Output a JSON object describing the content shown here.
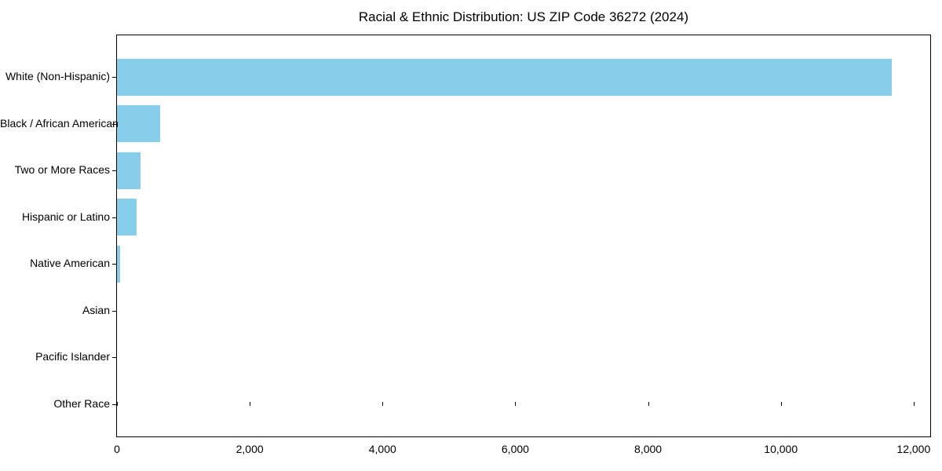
{
  "title": "Racial & Ethnic Distribution: US ZIP Code 36272 (2024)",
  "chart_data": {
    "type": "bar",
    "orientation": "horizontal",
    "title": "Racial & Ethnic Distribution: US ZIP Code 36272 (2024)",
    "categories": [
      "White (Non-Hispanic)",
      "Black / African American",
      "Two or More Races",
      "Hispanic or Latino",
      "Native American",
      "Asian",
      "Pacific Islander",
      "Other Race"
    ],
    "values": [
      11670,
      650,
      355,
      290,
      45,
      0,
      0,
      0
    ],
    "xlabel": "",
    "ylabel": "",
    "xlim": [
      0,
      12250
    ],
    "x_ticks": [
      0,
      2000,
      4000,
      6000,
      8000,
      10000,
      12000
    ],
    "x_tick_labels": [
      "0",
      "2,000",
      "4,000",
      "6,000",
      "8,000",
      "10,000",
      "12,000"
    ],
    "bar_color": "#87CEEB",
    "spine_color": "#000000",
    "grid": false,
    "legend": null
  }
}
